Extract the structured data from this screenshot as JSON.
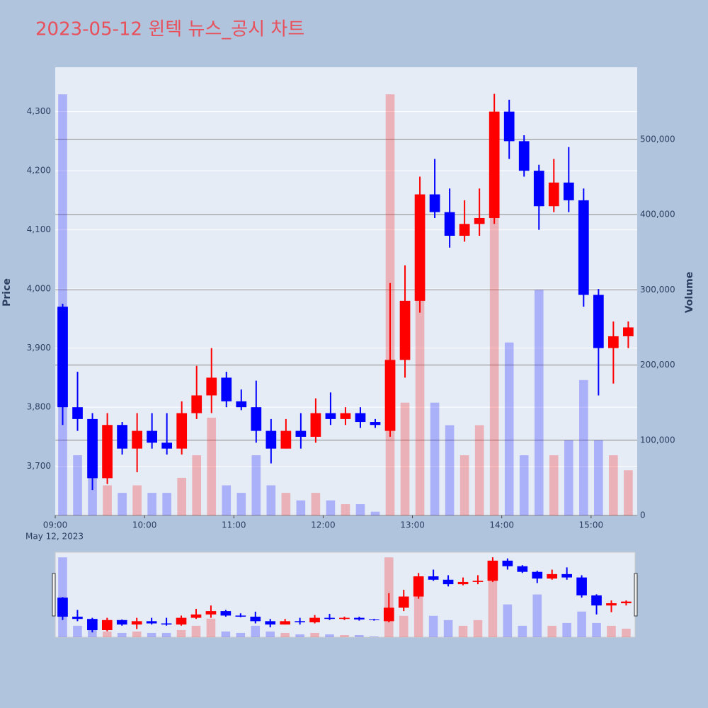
{
  "chart_data": {
    "type": "candlestick",
    "title": "2023-05-12 윈텍 뉴스_공시 차트",
    "y_label": "Price",
    "y2_label": "Volume",
    "x_sublabel": "May 12, 2023",
    "increasing_color": "#ff0000",
    "decreasing_color": "#0000ff",
    "grid": true,
    "xlim": [
      "09:00",
      "15:31"
    ],
    "xticks": [
      "09:00",
      "10:00",
      "11:00",
      "12:00",
      "13:00",
      "14:00",
      "15:00"
    ],
    "ylim": [
      3617,
      4375
    ],
    "yticks": [
      {
        "value": 3700,
        "label": "3,700"
      },
      {
        "value": 3800,
        "label": "3,800"
      },
      {
        "value": 3900,
        "label": "3,900"
      },
      {
        "value": 4000,
        "label": "4,000"
      },
      {
        "value": 4100,
        "label": "4,100"
      },
      {
        "value": 4200,
        "label": "4,200"
      },
      {
        "value": 4300,
        "label": "4,300"
      }
    ],
    "y2lim": [
      0,
      596000
    ],
    "y2ticks": [
      0,
      {
        "value": 100000,
        "label": "100,000"
      },
      {
        "value": 200000,
        "label": "200,000"
      },
      {
        "value": 300000,
        "label": "300,000"
      },
      {
        "value": 400000,
        "label": "400,000"
      },
      {
        "value": 500000,
        "label": "500,000"
      }
    ],
    "x": [
      "09:00",
      "09:10",
      "09:20",
      "09:30",
      "09:40",
      "09:50",
      "10:00",
      "10:10",
      "10:20",
      "10:30",
      "10:40",
      "10:50",
      "11:00",
      "11:10",
      "11:20",
      "11:30",
      "11:40",
      "11:50",
      "12:00",
      "12:10",
      "12:20",
      "12:30",
      "12:40",
      "12:50",
      "13:00",
      "13:10",
      "13:20",
      "13:30",
      "13:40",
      "13:50",
      "14:00",
      "14:10",
      "14:20",
      "14:30",
      "14:40",
      "14:50",
      "15:00",
      "15:10",
      "15:20"
    ],
    "open": [
      3970,
      3800,
      3780,
      3680,
      3770,
      3730,
      3760,
      3740,
      3730,
      3790,
      3820,
      3850,
      3810,
      3800,
      3760,
      3730,
      3760,
      3750,
      3790,
      3780,
      3790,
      3775,
      3760,
      3880,
      3980,
      4160,
      4130,
      4090,
      4110,
      4120,
      4300,
      4250,
      4200,
      4140,
      4180,
      4150,
      3990,
      3900,
      3920
    ],
    "high": [
      3975,
      3860,
      3790,
      3790,
      3775,
      3790,
      3790,
      3790,
      3810,
      3870,
      3900,
      3860,
      3830,
      3845,
      3780,
      3780,
      3790,
      3815,
      3825,
      3800,
      3800,
      3780,
      4010,
      4040,
      4190,
      4220,
      4170,
      4150,
      4170,
      4330,
      4320,
      4260,
      4210,
      4220,
      4240,
      4170,
      4000,
      3945,
      3945
    ],
    "low": [
      3770,
      3760,
      3660,
      3670,
      3720,
      3690,
      3730,
      3720,
      3720,
      3780,
      3790,
      3800,
      3795,
      3740,
      3705,
      3730,
      3730,
      3740,
      3770,
      3770,
      3765,
      3765,
      3750,
      3850,
      3960,
      4120,
      4070,
      4080,
      4090,
      4110,
      4220,
      4190,
      4100,
      4130,
      4130,
      3970,
      3820,
      3840,
      3900
    ],
    "close": [
      3800,
      3780,
      3680,
      3770,
      3730,
      3760,
      3740,
      3730,
      3790,
      3820,
      3850,
      3810,
      3800,
      3760,
      3730,
      3760,
      3750,
      3790,
      3780,
      3790,
      3775,
      3770,
      3880,
      3980,
      4160,
      4130,
      4090,
      4110,
      4120,
      4300,
      4250,
      4200,
      4140,
      4180,
      4150,
      3990,
      3900,
      3920,
      3935
    ],
    "volume": [
      560000,
      80000,
      60000,
      40000,
      30000,
      40000,
      30000,
      30000,
      50000,
      80000,
      130000,
      40000,
      30000,
      80000,
      40000,
      30000,
      20000,
      30000,
      20000,
      15000,
      15000,
      5000,
      560000,
      150000,
      300000,
      150000,
      120000,
      80000,
      120000,
      400000,
      230000,
      80000,
      300000,
      80000,
      100000,
      180000,
      100000,
      80000,
      60000
    ]
  }
}
